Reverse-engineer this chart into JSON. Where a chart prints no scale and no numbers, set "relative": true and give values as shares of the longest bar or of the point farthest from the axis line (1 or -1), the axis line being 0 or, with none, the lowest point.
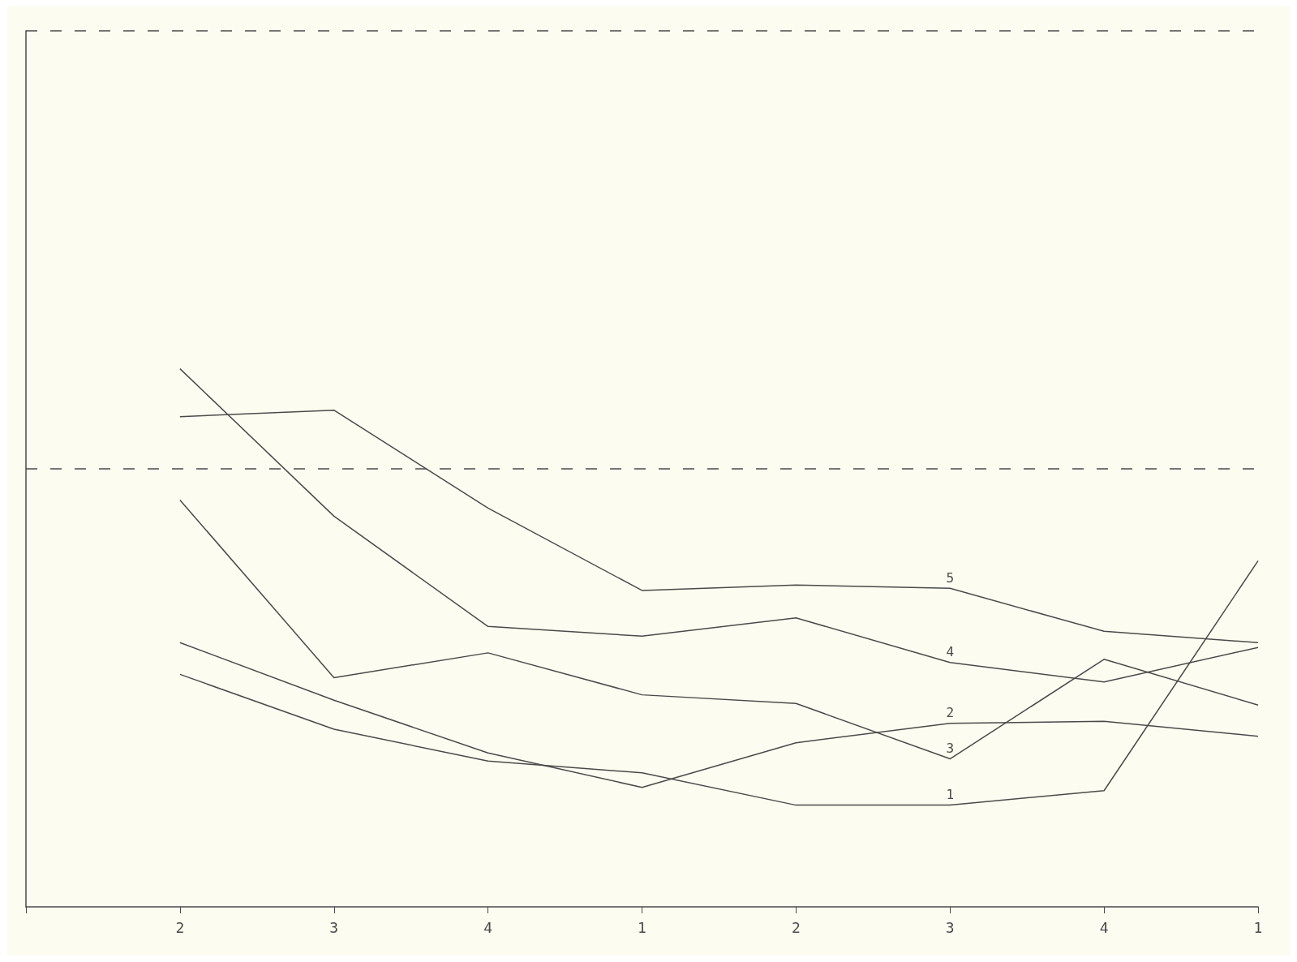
{
  "chart_data": {
    "type": "line",
    "relative": true,
    "categories": [
      null,
      "2",
      "3",
      "4",
      "1",
      "2",
      "3",
      "4",
      "1"
    ],
    "series": [
      {
        "name": "1",
        "color": "#4a4a4a",
        "values": [
          null,
          0.432,
          0.33,
          0.271,
          0.249,
          0.189,
          0.189,
          0.216,
          0.643
        ]
      },
      {
        "name": "2",
        "color": "#4a4a4a",
        "values": [
          null,
          0.491,
          0.384,
          0.286,
          0.222,
          0.305,
          0.341,
          0.345,
          0.317
        ]
      },
      {
        "name": "3",
        "color": "#4a4a4a",
        "values": [
          null,
          0.756,
          0.426,
          0.472,
          0.394,
          0.378,
          0.275,
          0.46,
          0.375
        ]
      },
      {
        "name": "4",
        "color": "#4a4a4a",
        "values": [
          null,
          1,
          0.726,
          0.521,
          0.503,
          0.537,
          0.454,
          0.418,
          0.482
        ]
      },
      {
        "name": "5",
        "color": "#4a4a4a",
        "values": [
          null,
          0.911,
          0.923,
          0.741,
          0.588,
          0.598,
          0.592,
          0.512,
          0.491
        ]
      }
    ],
    "ref_lines": [
      {
        "axis": "y",
        "value": 1.628,
        "line_style": "dashed"
      },
      {
        "axis": "y",
        "value": 0.815,
        "line_style": "dashed"
      }
    ],
    "grid": false,
    "legend": false,
    "marker": "none",
    "line_style": "solid"
  }
}
